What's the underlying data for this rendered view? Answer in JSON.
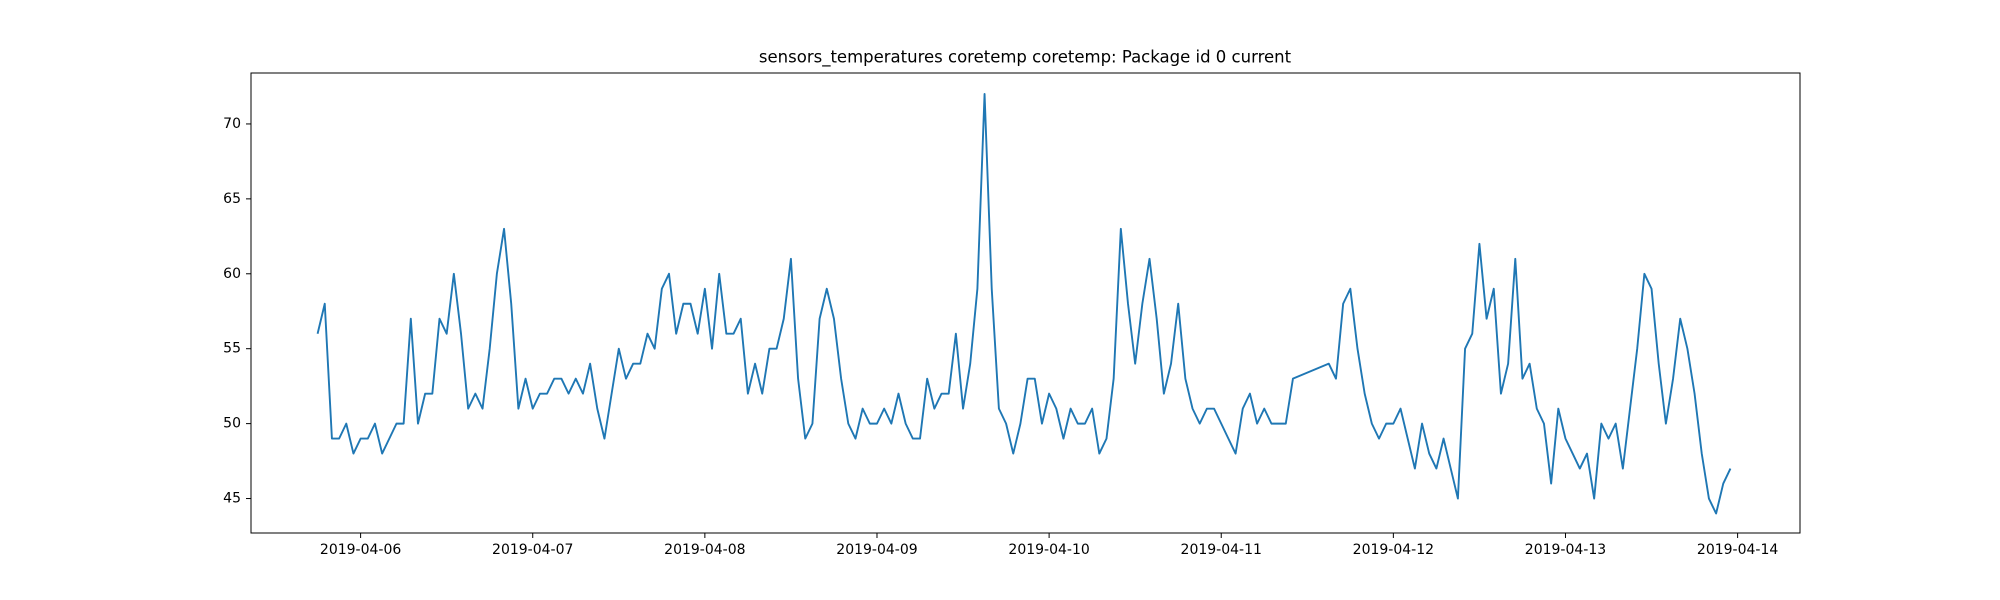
{
  "chart_data": {
    "type": "line",
    "title": "sensors_temperatures coretemp coretemp: Package id 0 current",
    "color": "#1f77b4",
    "x": [
      "2019-04-05T18:00",
      "2019-04-05T19:00",
      "2019-04-05T20:00",
      "2019-04-05T21:00",
      "2019-04-05T22:00",
      "2019-04-05T23:00",
      "2019-04-06T00:00",
      "2019-04-06T01:00",
      "2019-04-06T02:00",
      "2019-04-06T03:00",
      "2019-04-06T04:00",
      "2019-04-06T05:00",
      "2019-04-06T06:00",
      "2019-04-06T07:00",
      "2019-04-06T08:00",
      "2019-04-06T09:00",
      "2019-04-06T10:00",
      "2019-04-06T11:00",
      "2019-04-06T12:00",
      "2019-04-06T13:00",
      "2019-04-06T14:00",
      "2019-04-06T15:00",
      "2019-04-06T16:00",
      "2019-04-06T17:00",
      "2019-04-06T18:00",
      "2019-04-06T19:00",
      "2019-04-06T20:00",
      "2019-04-06T21:00",
      "2019-04-06T22:00",
      "2019-04-06T23:00",
      "2019-04-07T00:00",
      "2019-04-07T01:00",
      "2019-04-07T02:00",
      "2019-04-07T03:00",
      "2019-04-07T04:00",
      "2019-04-07T05:00",
      "2019-04-07T06:00",
      "2019-04-07T07:00",
      "2019-04-07T08:00",
      "2019-04-07T09:00",
      "2019-04-07T10:00",
      "2019-04-07T11:00",
      "2019-04-07T12:00",
      "2019-04-07T13:00",
      "2019-04-07T14:00",
      "2019-04-07T15:00",
      "2019-04-07T16:00",
      "2019-04-07T17:00",
      "2019-04-07T18:00",
      "2019-04-07T19:00",
      "2019-04-07T20:00",
      "2019-04-07T21:00",
      "2019-04-07T22:00",
      "2019-04-07T23:00",
      "2019-04-08T00:00",
      "2019-04-08T01:00",
      "2019-04-08T02:00",
      "2019-04-08T03:00",
      "2019-04-08T04:00",
      "2019-04-08T05:00",
      "2019-04-08T06:00",
      "2019-04-08T07:00",
      "2019-04-08T08:00",
      "2019-04-08T09:00",
      "2019-04-08T10:00",
      "2019-04-08T11:00",
      "2019-04-08T12:00",
      "2019-04-08T13:00",
      "2019-04-08T14:00",
      "2019-04-08T15:00",
      "2019-04-08T16:00",
      "2019-04-08T17:00",
      "2019-04-08T18:00",
      "2019-04-08T19:00",
      "2019-04-08T20:00",
      "2019-04-08T21:00",
      "2019-04-08T22:00",
      "2019-04-08T23:00",
      "2019-04-09T00:00",
      "2019-04-09T01:00",
      "2019-04-09T02:00",
      "2019-04-09T03:00",
      "2019-04-09T04:00",
      "2019-04-09T05:00",
      "2019-04-09T06:00",
      "2019-04-09T07:00",
      "2019-04-09T08:00",
      "2019-04-09T09:00",
      "2019-04-09T10:00",
      "2019-04-09T11:00",
      "2019-04-09T12:00",
      "2019-04-09T13:00",
      "2019-04-09T14:00",
      "2019-04-09T15:00",
      "2019-04-09T16:00",
      "2019-04-09T17:00",
      "2019-04-09T18:00",
      "2019-04-09T19:00",
      "2019-04-09T20:00",
      "2019-04-09T21:00",
      "2019-04-09T22:00",
      "2019-04-09T23:00",
      "2019-04-10T00:00",
      "2019-04-10T01:00",
      "2019-04-10T02:00",
      "2019-04-10T03:00",
      "2019-04-10T04:00",
      "2019-04-10T05:00",
      "2019-04-10T06:00",
      "2019-04-10T07:00",
      "2019-04-10T08:00",
      "2019-04-10T09:00",
      "2019-04-10T10:00",
      "2019-04-10T11:00",
      "2019-04-10T12:00",
      "2019-04-10T13:00",
      "2019-04-10T14:00",
      "2019-04-10T15:00",
      "2019-04-10T16:00",
      "2019-04-10T17:00",
      "2019-04-10T18:00",
      "2019-04-10T19:00",
      "2019-04-10T20:00",
      "2019-04-10T21:00",
      "2019-04-10T22:00",
      "2019-04-10T23:00",
      "2019-04-11T00:00",
      "2019-04-11T01:00",
      "2019-04-11T02:00",
      "2019-04-11T03:00",
      "2019-04-11T04:00",
      "2019-04-11T05:00",
      "2019-04-11T06:00",
      "2019-04-11T07:00",
      "2019-04-11T08:00",
      "2019-04-11T09:00",
      "2019-04-11T10:00",
      "2019-04-11T15:00",
      "2019-04-11T16:00",
      "2019-04-11T17:00",
      "2019-04-11T18:00",
      "2019-04-11T19:00",
      "2019-04-11T20:00",
      "2019-04-11T21:00",
      "2019-04-11T22:00",
      "2019-04-11T23:00",
      "2019-04-12T00:00",
      "2019-04-12T01:00",
      "2019-04-12T02:00",
      "2019-04-12T03:00",
      "2019-04-12T04:00",
      "2019-04-12T05:00",
      "2019-04-12T06:00",
      "2019-04-12T07:00",
      "2019-04-12T08:00",
      "2019-04-12T09:00",
      "2019-04-12T10:00",
      "2019-04-12T11:00",
      "2019-04-12T12:00",
      "2019-04-12T13:00",
      "2019-04-12T14:00",
      "2019-04-12T15:00",
      "2019-04-12T16:00",
      "2019-04-12T17:00",
      "2019-04-12T18:00",
      "2019-04-12T19:00",
      "2019-04-12T20:00",
      "2019-04-12T21:00",
      "2019-04-12T22:00",
      "2019-04-12T23:00",
      "2019-04-13T00:00",
      "2019-04-13T01:00",
      "2019-04-13T02:00",
      "2019-04-13T03:00",
      "2019-04-13T04:00",
      "2019-04-13T05:00",
      "2019-04-13T06:00",
      "2019-04-13T07:00",
      "2019-04-13T08:00",
      "2019-04-13T09:00",
      "2019-04-13T10:00",
      "2019-04-13T11:00",
      "2019-04-13T12:00",
      "2019-04-13T13:00",
      "2019-04-13T14:00",
      "2019-04-13T15:00",
      "2019-04-13T16:00",
      "2019-04-13T17:00",
      "2019-04-13T18:00",
      "2019-04-13T19:00",
      "2019-04-13T20:00",
      "2019-04-13T21:00",
      "2019-04-13T22:00",
      "2019-04-13T23:00"
    ],
    "values": [
      56,
      58,
      49,
      49,
      50,
      48,
      49,
      49,
      50,
      48,
      49,
      50,
      50,
      57,
      50,
      52,
      52,
      57,
      56,
      60,
      56,
      51,
      52,
      51,
      55,
      60,
      63,
      58,
      51,
      53,
      51,
      52,
      52,
      53,
      53,
      52,
      53,
      52,
      54,
      51,
      49,
      52,
      55,
      53,
      54,
      54,
      56,
      55,
      59,
      60,
      56,
      58,
      58,
      56,
      59,
      55,
      60,
      56,
      56,
      57,
      52,
      54,
      52,
      55,
      55,
      57,
      61,
      53,
      49,
      50,
      57,
      59,
      57,
      53,
      50,
      49,
      51,
      50,
      50,
      51,
      50,
      52,
      50,
      49,
      49,
      53,
      51,
      52,
      52,
      56,
      51,
      54,
      59,
      72,
      59,
      51,
      50,
      48,
      50,
      53,
      53,
      50,
      52,
      51,
      49,
      51,
      50,
      50,
      51,
      48,
      49,
      53,
      63,
      58,
      54,
      58,
      61,
      57,
      52,
      54,
      58,
      53,
      51,
      50,
      51,
      51,
      50,
      49,
      48,
      51,
      52,
      50,
      51,
      50,
      50,
      50,
      53,
      54,
      53,
      58,
      59,
      55,
      52,
      50,
      49,
      50,
      50,
      51,
      49,
      47,
      50,
      48,
      47,
      49,
      47,
      45,
      55,
      56,
      62,
      57,
      59,
      52,
      54,
      61,
      53,
      54,
      51,
      50,
      46,
      51,
      49,
      48,
      47,
      48,
      45,
      50,
      49,
      50,
      47,
      51,
      55,
      60,
      59,
      54,
      50,
      53,
      57,
      55,
      52,
      48,
      45,
      44,
      46,
      47
    ],
    "xlim": [
      "2019-04-05T08:43",
      "2019-04-14T08:42"
    ],
    "xticks": [
      "2019-04-06",
      "2019-04-07",
      "2019-04-08",
      "2019-04-09",
      "2019-04-10",
      "2019-04-11",
      "2019-04-12",
      "2019-04-13",
      "2019-04-14"
    ],
    "ylim": [
      42.7,
      73.4
    ],
    "yticks": [
      45,
      50,
      55,
      60,
      65,
      70
    ]
  }
}
